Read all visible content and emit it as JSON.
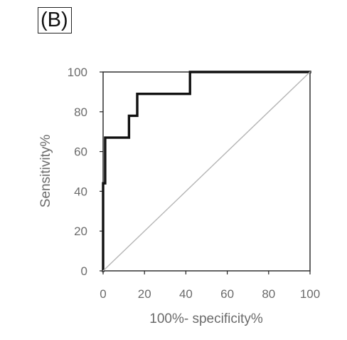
{
  "panel_label": "(B)",
  "chart_data": {
    "type": "line",
    "xlabel": "100%- specificity%",
    "ylabel": "Sensitivity%",
    "xlim": [
      0,
      100
    ],
    "ylim": [
      0,
      100
    ],
    "x_ticks": [
      "0",
      "20",
      "40",
      "60",
      "80",
      "100"
    ],
    "y_ticks": [
      "0",
      "20",
      "40",
      "60",
      "80",
      "100"
    ],
    "grid": false,
    "series": [
      {
        "color": "#111111",
        "points": [
          [
            0,
            0
          ],
          [
            0,
            44
          ],
          [
            1,
            44
          ],
          [
            1,
            67
          ],
          [
            12.5,
            67
          ],
          [
            12.5,
            78
          ],
          [
            16.5,
            78
          ],
          [
            16.5,
            89
          ],
          [
            42,
            89
          ],
          [
            42,
            100
          ],
          [
            100,
            100
          ]
        ]
      },
      {
        "color": "#b5b5b5",
        "points": [
          [
            0,
            0
          ],
          [
            100,
            100
          ]
        ]
      }
    ]
  }
}
